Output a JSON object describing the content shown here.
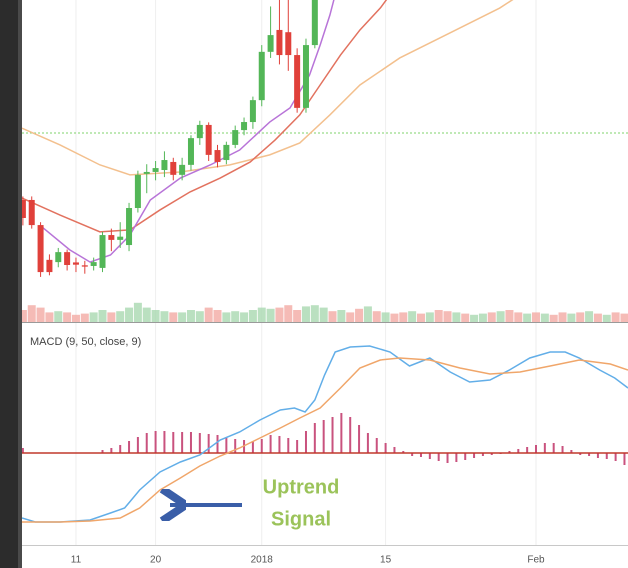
{
  "chart_data": [
    {
      "type": "candlestick",
      "xlim": [
        4.9,
        73.4
      ],
      "ylim": [
        0,
        100
      ],
      "x": [
        5,
        6,
        7,
        8,
        9,
        10,
        11,
        12,
        13,
        14,
        15,
        16,
        17,
        18,
        19,
        20,
        21,
        22,
        23,
        24,
        25,
        26,
        27,
        28,
        29,
        30,
        31,
        32,
        33,
        34,
        35,
        36,
        37,
        38
      ],
      "open": [
        37.9,
        37.9,
        30.1,
        19.3,
        18.6,
        21.7,
        18.5,
        17.6,
        17.4,
        16.8,
        27.0,
        25.5,
        23.9,
        35.4,
        46.0,
        46.6,
        47.2,
        49.7,
        45.7,
        48.8,
        57.1,
        61.2,
        53.4,
        50.3,
        55.0,
        59.6,
        62.1,
        68.9,
        83.9,
        90.7,
        90.0,
        82.9,
        66.5,
        86.0
      ],
      "high": [
        39,
        39,
        31,
        21,
        23,
        22.5,
        20,
        19,
        20,
        28,
        29,
        31,
        37,
        47,
        49,
        50,
        53,
        51,
        51,
        58,
        62.5,
        62,
        55,
        56,
        61,
        63.5,
        70,
        86,
        98,
        102,
        100,
        85,
        88,
        105
      ],
      "low": [
        30,
        29,
        14,
        14.5,
        17,
        16,
        15.5,
        15,
        16,
        15.5,
        22,
        23,
        22,
        34,
        40,
        44,
        45,
        44,
        44,
        47,
        55,
        50,
        48,
        49,
        54,
        58,
        60,
        67,
        82,
        80,
        78,
        65,
        65,
        85
      ],
      "close": [
        32.3,
        30.1,
        15.5,
        15.5,
        21.7,
        17.7,
        17.8,
        17.2,
        18.6,
        27.0,
        25.5,
        26.5,
        35.4,
        45.7,
        46.6,
        47.8,
        50.3,
        45.7,
        48.8,
        57.1,
        61.2,
        51.9,
        49.7,
        55.0,
        59.6,
        62.1,
        68.9,
        83.9,
        89.1,
        82.9,
        82.9,
        66.5,
        86.0,
        100.5
      ],
      "up_color": "#53b657",
      "down_color": "#e0403a",
      "series": [
        {
          "color": "#f3c08e",
          "x": [
            4.9,
            9.2,
            13.7,
            17.1,
            22.8,
            28.4,
            32.9,
            36.3,
            39.7,
            43.1,
            47.6,
            53.3,
            58.9,
            61.2
          ],
          "values": [
            60.2,
            55.0,
            48.8,
            45.7,
            46.6,
            48.8,
            51.9,
            55.6,
            64.3,
            73.6,
            82.0,
            89.8,
            97.5,
            101.6
          ]
        },
        {
          "color": "#e2725f",
          "x": [
            4.9,
            9.2,
            13.7,
            17.1,
            20.5,
            23.9,
            27.3,
            30.7,
            33.5,
            36.3,
            38.6,
            40.9,
            43.1,
            45.4,
            46.5
          ],
          "values": [
            38.5,
            33.2,
            28.0,
            28.6,
            34.8,
            40.4,
            44.7,
            49.7,
            56.5,
            64.3,
            73.6,
            82.9,
            90.7,
            97.5,
            101.6
          ]
        },
        {
          "color": "#b874d8",
          "x": [
            6.9,
            10.3,
            12.6,
            14.9,
            17.1,
            19.4,
            22.8,
            26.2,
            29.5,
            32.9,
            35.2,
            37.4,
            38.6,
            39.7,
            40.3
          ],
          "values": [
            30.1,
            22.4,
            18.6,
            20.8,
            27.0,
            37.9,
            44.7,
            48.8,
            53.4,
            62.1,
            66.5,
            76.7,
            86.0,
            95.3,
            101.6
          ]
        }
      ],
      "hline": 58.7,
      "hline_color": "#7fd36b",
      "volume": {
        "ylim": [
          0,
          100
        ],
        "x": [
          5,
          6,
          7,
          8,
          9,
          10,
          11,
          12,
          13,
          14,
          15,
          16,
          17,
          18,
          19,
          20,
          21,
          22,
          23,
          24,
          25,
          26,
          27,
          28,
          29,
          30,
          31,
          32,
          33,
          34,
          35,
          36,
          37,
          38,
          39,
          40,
          41,
          42,
          43,
          44,
          45,
          46,
          47,
          48,
          49,
          50,
          51,
          52,
          53,
          54,
          55,
          56,
          57,
          58,
          59,
          60,
          61,
          62,
          63,
          64,
          65,
          66,
          67,
          68,
          69,
          70,
          71,
          72,
          73
        ],
        "values": [
          10,
          14,
          12,
          8,
          9,
          8,
          6,
          7,
          8,
          10,
          8,
          9,
          12,
          16,
          12,
          10,
          9,
          8,
          8,
          10,
          9,
          12,
          10,
          8,
          9,
          8,
          10,
          12,
          11,
          12,
          14,
          10,
          13,
          14,
          12,
          9,
          10,
          8,
          11,
          13,
          9,
          8,
          7,
          8,
          9,
          7,
          8,
          10,
          9,
          8,
          7,
          6,
          7,
          8,
          9,
          10,
          8,
          7,
          8,
          7,
          6,
          8,
          7,
          8,
          9,
          7,
          6,
          8,
          7
        ],
        "up": [
          false,
          false,
          false,
          false,
          true,
          false,
          false,
          false,
          true,
          true,
          false,
          true,
          true,
          true,
          true,
          true,
          true,
          false,
          true,
          true,
          true,
          false,
          false,
          true,
          true,
          true,
          true,
          true,
          true,
          false,
          false,
          false,
          true,
          true,
          true,
          false,
          true,
          false,
          false,
          true,
          false,
          true,
          false,
          false,
          true,
          false,
          true,
          false,
          false,
          true,
          false,
          true,
          true,
          false,
          true,
          false,
          false,
          true,
          false,
          true,
          false,
          false,
          true,
          false,
          true,
          false,
          true,
          false,
          false
        ],
        "up_color": "#a9d8b0",
        "down_color": "#f2aaa4"
      },
      "grid": true
    },
    {
      "type": "macd",
      "title": "MACD (9, 50, close, 9)",
      "xlim": [
        4.9,
        73.4
      ],
      "ylim": [
        -92,
        130
      ],
      "xticks": [
        11,
        20,
        {
          "value": 32,
          "label": "2018"
        },
        {
          "value": 46,
          "label": "15"
        },
        {
          "value": 63,
          "label": "Feb"
        }
      ],
      "series": [
        {
          "color": "#62aee8",
          "x": [
            4.9,
            6.4,
            9.2,
            12.6,
            14.9,
            16.5,
            18.2,
            20.5,
            22.8,
            25,
            27.3,
            29.5,
            31.8,
            34.1,
            35.7,
            36.9,
            38,
            39.1,
            40.3,
            42,
            44.2,
            46.5,
            48.7,
            51,
            53.3,
            55.5,
            57.8,
            60,
            62.3,
            64.6,
            66.3,
            67.9,
            70.2,
            71.9,
            73.4
          ],
          "values": [
            -65,
            -69,
            -69,
            -67,
            -60,
            -55,
            -37,
            -19,
            -9,
            -2,
            13,
            21,
            33,
            43,
            45,
            41,
            53,
            78,
            101,
            106,
            107,
            101,
            87,
            95,
            81,
            71,
            73,
            83,
            95,
            101,
            101,
            95,
            83,
            75,
            65
          ]
        },
        {
          "color": "#f0a66a",
          "x": [
            4.9,
            9.2,
            12.6,
            16,
            18.2,
            20.5,
            22.8,
            25,
            27.3,
            29.5,
            31.8,
            34.1,
            36.3,
            38.6,
            40.9,
            43.1,
            45.4,
            47.6,
            51,
            54.4,
            57.8,
            61.2,
            64.6,
            67.9,
            71.4,
            73.4
          ],
          "values": [
            -69,
            -69,
            -68,
            -65,
            -55,
            -37,
            -25,
            -13,
            -3,
            5,
            15,
            25,
            35,
            45,
            65,
            85,
            93,
            95,
            93,
            85,
            79,
            81,
            87,
            93,
            89,
            83
          ]
        }
      ],
      "histogram": {
        "color": "#c9527e",
        "x": [
          5,
          6,
          7,
          8,
          9,
          10,
          11,
          12,
          13,
          14,
          15,
          16,
          17,
          18,
          19,
          20,
          21,
          22,
          23,
          24,
          25,
          26,
          27,
          28,
          29,
          30,
          31,
          32,
          33,
          34,
          35,
          36,
          37,
          38,
          39,
          40,
          41,
          42,
          43,
          44,
          45,
          46,
          47,
          48,
          49,
          50,
          51,
          52,
          53,
          54,
          55,
          56,
          57,
          58,
          59,
          60,
          61,
          62,
          63,
          64,
          65,
          66,
          67,
          68,
          69,
          70,
          71,
          72,
          73
        ],
        "values": [
          5,
          0,
          0,
          0,
          0,
          0,
          0,
          0,
          0,
          3,
          5,
          8,
          12,
          16,
          20,
          22,
          22,
          21,
          21,
          21,
          20,
          19,
          18,
          16,
          14,
          13,
          12,
          14,
          18,
          17,
          15,
          13,
          22,
          30,
          33,
          36,
          40,
          36,
          28,
          20,
          15,
          10,
          6,
          2,
          -3,
          -4,
          -6,
          -8,
          -10,
          -9,
          -7,
          -5,
          -3,
          -2,
          -1,
          2,
          4,
          6,
          8,
          10,
          10,
          7,
          3,
          -2,
          -3,
          -5,
          -6,
          -8,
          -12
        ]
      },
      "zero_color": "#c0392b",
      "annotation": [
        "Uptrend",
        "Signal"
      ],
      "annotation_color": "#9bc35a",
      "grid": true
    }
  ]
}
